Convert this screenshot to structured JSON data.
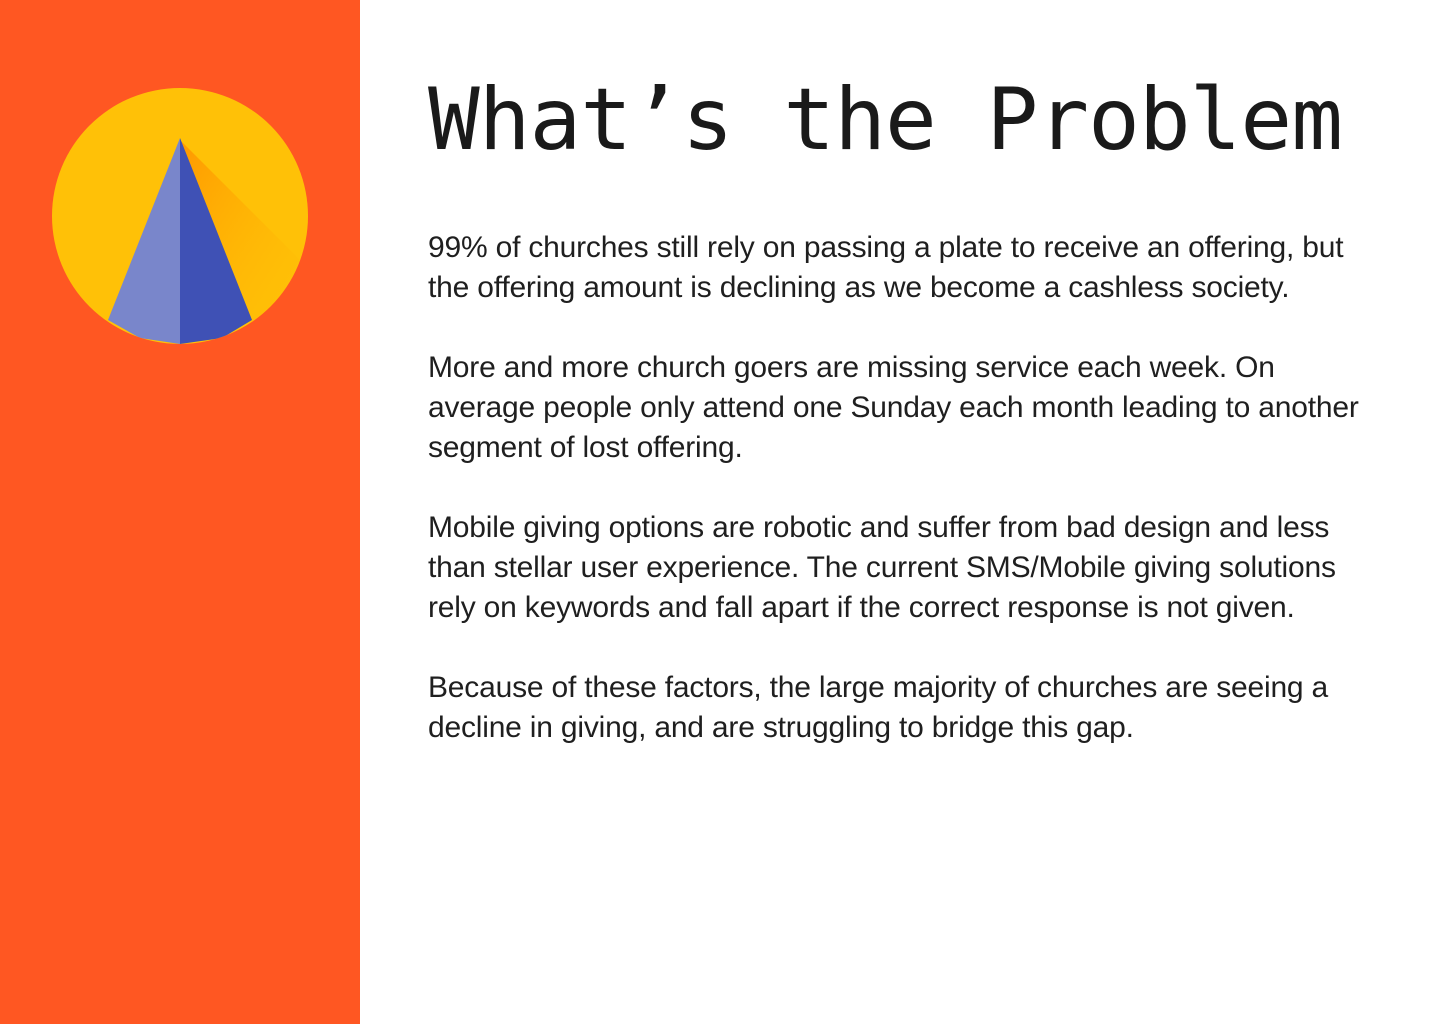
{
  "slide": {
    "title": "What’s the Problem",
    "paragraphs": [
      "99% of churches still rely on passing a plate to receive an offering, but the offering amount is declining as we become a cashless society.",
      "More and more church goers are missing service each week. On average people only attend one Sunday each month leading to another segment of lost offering.",
      "Mobile giving options are robotic and suffer from bad design and less than stellar user experience. The current SMS/Mobile giving solutions rely on keywords and fall apart if the correct response is not given.",
      "Because of these factors, the large majority of churches are seeing a decline in giving, and are struggling to bridge this gap."
    ]
  },
  "colors": {
    "sidebar": "#FF5722",
    "logo_circle": "#FFC107",
    "logo_shadow": "#FF9800",
    "logo_left_face": "#7986CB",
    "logo_right_face": "#3F51B5",
    "text": "#1f1f1f",
    "background": "#ffffff"
  },
  "icons": {
    "logo": "circle-pyramid-logo"
  }
}
